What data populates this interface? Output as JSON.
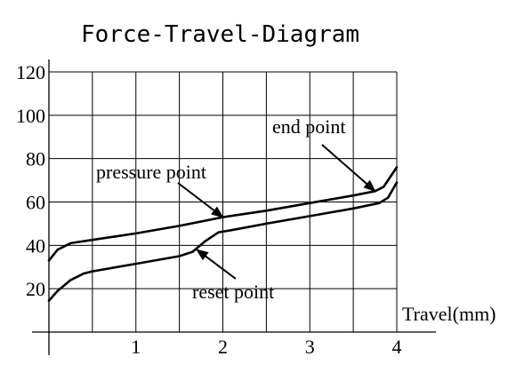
{
  "chart_data": {
    "type": "line",
    "title": "Force-Travel-Diagram",
    "xlabel": "Travel(mm)",
    "ylabel": "",
    "xlim": [
      0,
      4
    ],
    "ylim": [
      0,
      120
    ],
    "x_ticks": [
      1,
      2,
      3,
      4
    ],
    "y_ticks": [
      20,
      40,
      60,
      80,
      100,
      120
    ],
    "grid": true,
    "series": [
      {
        "points": [
          [
            0,
            33
          ],
          [
            0.1,
            38
          ],
          [
            0.25,
            41
          ],
          [
            0.5,
            42.5
          ],
          [
            1.0,
            45.5
          ],
          [
            1.5,
            49
          ],
          [
            2.0,
            53
          ],
          [
            2.5,
            56
          ],
          [
            3.0,
            59.5
          ],
          [
            3.5,
            63
          ],
          [
            3.75,
            65
          ],
          [
            3.85,
            67
          ],
          [
            4.0,
            76
          ]
        ]
      },
      {
        "points": [
          [
            0,
            14.5
          ],
          [
            0.1,
            19
          ],
          [
            0.25,
            24
          ],
          [
            0.4,
            27
          ],
          [
            0.5,
            28
          ],
          [
            1.0,
            31.5
          ],
          [
            1.5,
            35
          ],
          [
            1.65,
            37
          ],
          [
            1.8,
            42
          ],
          [
            1.95,
            46
          ],
          [
            2.1,
            47
          ],
          [
            2.5,
            50
          ],
          [
            3.0,
            53.5
          ],
          [
            3.5,
            57
          ],
          [
            3.8,
            59.5
          ],
          [
            3.9,
            62
          ],
          [
            4.0,
            69
          ]
        ]
      }
    ],
    "annotations": [
      {
        "text": "pressure point",
        "x": 2.0,
        "y": 53
      },
      {
        "text": "reset point",
        "x": 1.7,
        "y": 38
      },
      {
        "text": "end point",
        "x": 3.75,
        "y": 65
      }
    ]
  }
}
